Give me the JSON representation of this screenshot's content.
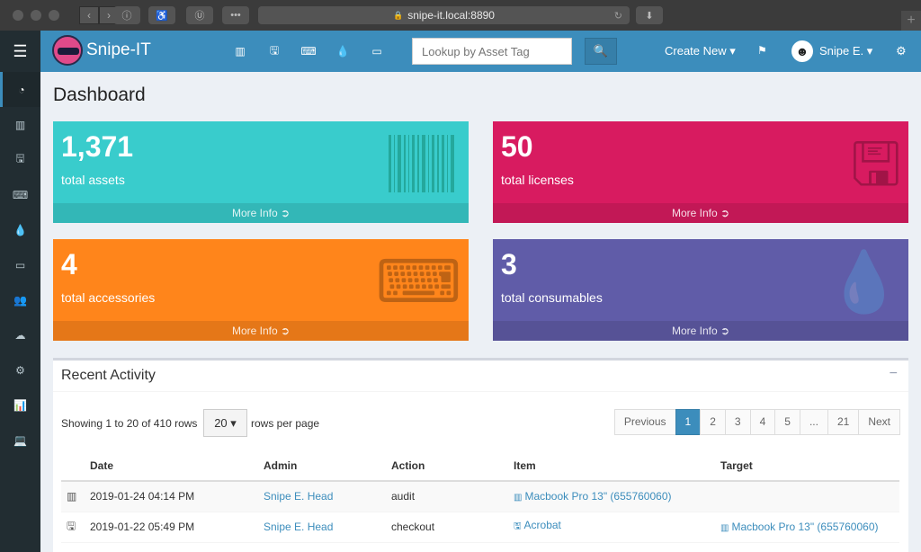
{
  "browser": {
    "url": "snipe-it.local:8890"
  },
  "navbar": {
    "brand": "Snipe-IT",
    "search_placeholder": "Lookup by Asset Tag",
    "create_new": "Create New ▾",
    "user": "Snipe E. ▾",
    "icons": [
      "barcode-icon",
      "floppy-icon",
      "keyboard-icon",
      "drop-icon",
      "hdd-icon"
    ]
  },
  "page_title": "Dashboard",
  "tiles": [
    {
      "number": "1,371",
      "label": "total assets",
      "more": "More Info",
      "color": "#39cccc"
    },
    {
      "number": "50",
      "label": "total licenses",
      "more": "More Info",
      "color": "#d81b60"
    },
    {
      "number": "4",
      "label": "total accessories",
      "more": "More Info",
      "color": "#ff851b"
    },
    {
      "number": "3",
      "label": "total consumables",
      "more": "More Info",
      "color": "#605ca8"
    }
  ],
  "recent": {
    "title": "Recent Activity",
    "showing": "Showing 1 to 20 of 410 rows",
    "page_size": "20 ▾",
    "rows_per_page": "rows per page",
    "pager": [
      "Previous",
      "1",
      "2",
      "3",
      "4",
      "5",
      "...",
      "21",
      "Next"
    ],
    "columns": [
      "Date",
      "Admin",
      "Action",
      "Item",
      "Target"
    ],
    "rows": [
      {
        "icon": "barcode-icon",
        "date": "2019-01-24 04:14 PM",
        "admin": "Snipe E. Head",
        "action": "audit",
        "item": "Macbook Pro 13\" (655760060)",
        "target": ""
      },
      {
        "icon": "floppy-icon",
        "date": "2019-01-22 05:49 PM",
        "admin": "Snipe E. Head",
        "action": "checkout",
        "item": "Acrobat",
        "target": "Macbook Pro 13\" (655760060)"
      }
    ]
  }
}
